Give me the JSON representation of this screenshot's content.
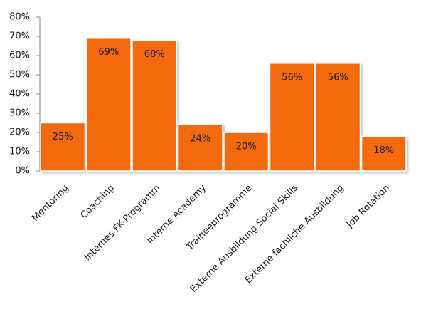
{
  "chart_data": {
    "type": "bar",
    "categories": [
      "Mentoring",
      "Coaching",
      "Internes FK-Programm",
      "Interne Academy",
      "Traineeprogramme",
      "Externe Ausbildung Social Skills",
      "Externe fachliche Ausbildung",
      "Job Rotation"
    ],
    "values": [
      25,
      69,
      68,
      24,
      20,
      56,
      56,
      18
    ],
    "value_labels": [
      "25%",
      "69%",
      "68%",
      "24%",
      "20%",
      "56%",
      "56%",
      "18%"
    ],
    "color": "#f26b0f",
    "ylim": [
      0,
      80
    ],
    "yticks": [
      {
        "value": 0,
        "label": "0%"
      },
      {
        "value": 10,
        "label": "10%"
      },
      {
        "value": 20,
        "label": "20%"
      },
      {
        "value": 30,
        "label": "30%"
      },
      {
        "value": 40,
        "label": "40%"
      },
      {
        "value": 50,
        "label": "50%"
      },
      {
        "value": 60,
        "label": "60%"
      },
      {
        "value": 70,
        "label": "70%"
      },
      {
        "value": 80,
        "label": "80%"
      }
    ]
  }
}
